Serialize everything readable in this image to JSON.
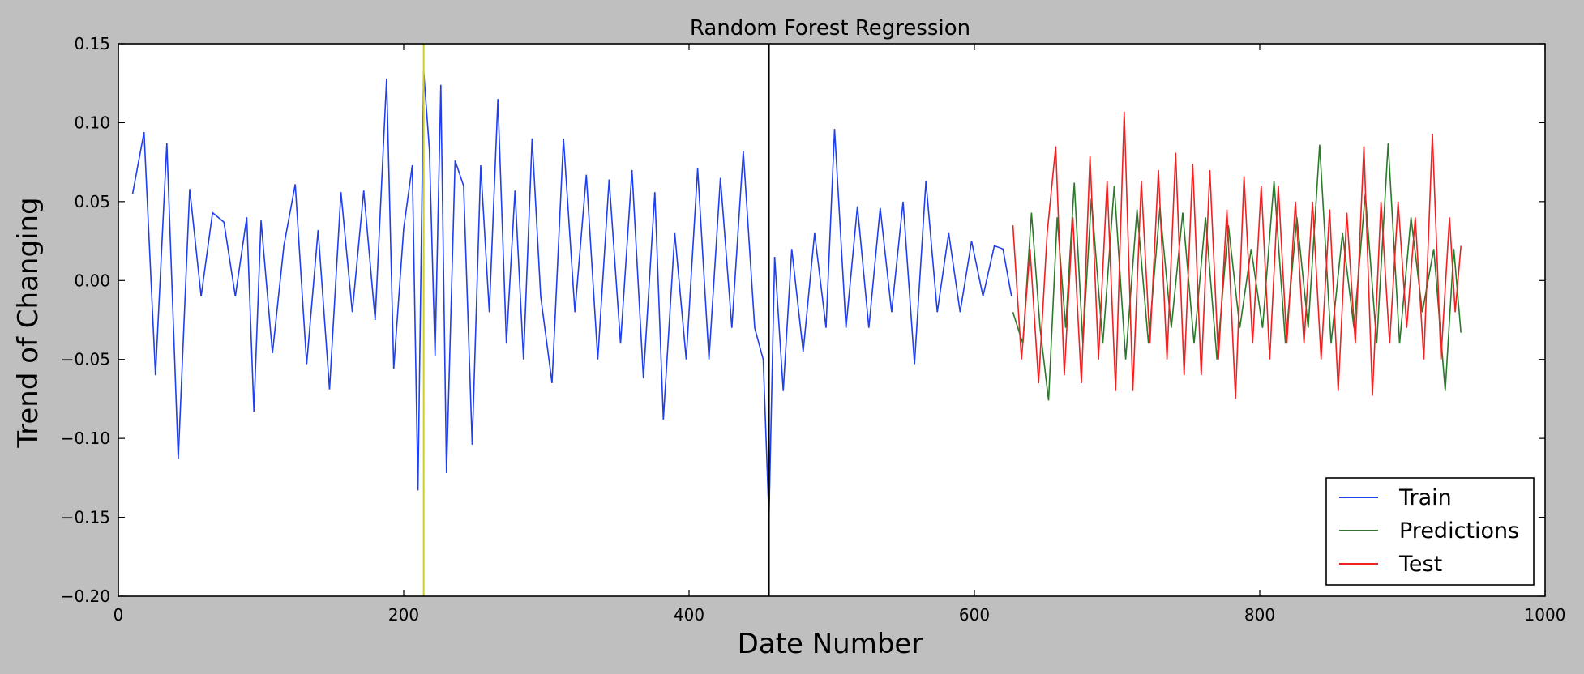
{
  "chart_data": {
    "type": "line",
    "title": "Random Forest Regression",
    "xlabel": "Date Number",
    "ylabel": "Trend of Changing",
    "xlim": [
      0,
      1000
    ],
    "ylim": [
      -0.2,
      0.15
    ],
    "xticks": [
      0,
      200,
      400,
      600,
      800,
      1000
    ],
    "xtick_labels": [
      "0",
      "200",
      "400",
      "600",
      "800",
      "1000"
    ],
    "yticks": [
      0.15,
      0.1,
      0.05,
      0.0,
      -0.05,
      -0.1,
      -0.15,
      -0.2
    ],
    "ytick_labels": [
      "0.15",
      "0.10",
      "0.05",
      "0.00",
      "−0.05",
      "−0.10",
      "−0.15",
      "−0.20"
    ],
    "grid": false,
    "legend_position": "lower-right",
    "vertical_lines": [
      {
        "x": 214,
        "color": "#cccc33"
      },
      {
        "x": 456,
        "color": "#000000"
      }
    ],
    "series": [
      {
        "name": "Train",
        "color": "#1f3ff0",
        "x": [
          10,
          18,
          26,
          34,
          42,
          50,
          58,
          66,
          74,
          82,
          90,
          95,
          100,
          108,
          116,
          124,
          132,
          140,
          148,
          156,
          164,
          172,
          180,
          188,
          193,
          200,
          206,
          210,
          214,
          218,
          222,
          226,
          230,
          236,
          242,
          248,
          254,
          260,
          266,
          272,
          278,
          284,
          290,
          296,
          304,
          312,
          320,
          328,
          336,
          344,
          352,
          360,
          368,
          376,
          382,
          390,
          398,
          406,
          414,
          422,
          430,
          438,
          446,
          452,
          456,
          460,
          466,
          472,
          480,
          488,
          496,
          502,
          510,
          518,
          526,
          534,
          542,
          550,
          558,
          566,
          574,
          582,
          590,
          598,
          606,
          614,
          620,
          626
        ],
        "y": [
          0.055,
          0.094,
          -0.06,
          0.087,
          -0.113,
          0.058,
          -0.01,
          0.043,
          0.037,
          -0.01,
          0.04,
          -0.083,
          0.038,
          -0.046,
          0.022,
          0.061,
          -0.053,
          0.032,
          -0.069,
          0.056,
          -0.02,
          0.057,
          -0.025,
          0.128,
          -0.056,
          0.033,
          0.073,
          -0.133,
          0.133,
          0.083,
          -0.048,
          0.124,
          -0.122,
          0.076,
          0.06,
          -0.104,
          0.073,
          -0.02,
          0.115,
          -0.04,
          0.057,
          -0.05,
          0.09,
          -0.01,
          -0.065,
          0.09,
          -0.02,
          0.067,
          -0.05,
          0.064,
          -0.04,
          0.07,
          -0.062,
          0.056,
          -0.088,
          0.03,
          -0.05,
          0.071,
          -0.05,
          0.065,
          -0.03,
          0.082,
          -0.03,
          -0.05,
          -0.151,
          0.015,
          -0.07,
          0.02,
          -0.045,
          0.03,
          -0.03,
          0.096,
          -0.03,
          0.047,
          -0.03,
          0.046,
          -0.02,
          0.05,
          -0.053,
          0.063,
          -0.02,
          0.03,
          -0.02,
          0.025,
          -0.01,
          0.022,
          0.02,
          -0.01
        ]
      },
      {
        "name": "Predictions",
        "color": "#2a7a2a",
        "x": [
          627,
          634,
          640,
          646,
          652,
          658,
          664,
          670,
          676,
          682,
          690,
          698,
          706,
          714,
          722,
          730,
          738,
          746,
          754,
          762,
          770,
          778,
          786,
          794,
          802,
          810,
          818,
          826,
          834,
          842,
          850,
          858,
          866,
          874,
          882,
          890,
          898,
          906,
          914,
          922,
          930,
          936,
          941
        ],
        "y": [
          -0.02,
          -0.04,
          0.043,
          -0.03,
          -0.076,
          0.04,
          -0.03,
          0.062,
          -0.04,
          0.052,
          -0.04,
          0.06,
          -0.05,
          0.045,
          -0.04,
          0.046,
          -0.03,
          0.043,
          -0.04,
          0.04,
          -0.05,
          0.035,
          -0.03,
          0.02,
          -0.03,
          0.063,
          -0.04,
          0.04,
          -0.03,
          0.086,
          -0.04,
          0.03,
          -0.03,
          0.055,
          -0.04,
          0.087,
          -0.04,
          0.04,
          -0.02,
          0.02,
          -0.07,
          0.02,
          -0.033
        ]
      },
      {
        "name": "Test",
        "color": "#ee2222",
        "x": [
          627,
          633,
          639,
          645,
          651,
          657,
          663,
          669,
          675,
          681,
          687,
          693,
          699,
          705,
          711,
          717,
          723,
          729,
          735,
          741,
          747,
          753,
          759,
          765,
          771,
          777,
          783,
          789,
          795,
          801,
          807,
          813,
          819,
          825,
          831,
          837,
          843,
          849,
          855,
          861,
          867,
          873,
          879,
          885,
          891,
          897,
          903,
          909,
          915,
          921,
          927,
          933,
          937,
          941
        ],
        "y": [
          0.035,
          -0.05,
          0.02,
          -0.065,
          0.03,
          0.085,
          -0.06,
          0.04,
          -0.065,
          0.079,
          -0.05,
          0.063,
          -0.07,
          0.107,
          -0.07,
          0.063,
          -0.04,
          0.07,
          -0.05,
          0.081,
          -0.06,
          0.074,
          -0.06,
          0.07,
          -0.05,
          0.045,
          -0.075,
          0.066,
          -0.04,
          0.06,
          -0.05,
          0.06,
          -0.04,
          0.05,
          -0.04,
          0.05,
          -0.05,
          0.045,
          -0.07,
          0.043,
          -0.04,
          0.085,
          -0.073,
          0.05,
          -0.04,
          0.05,
          -0.03,
          0.04,
          -0.05,
          0.093,
          -0.05,
          0.04,
          -0.02,
          0.022
        ]
      }
    ]
  }
}
